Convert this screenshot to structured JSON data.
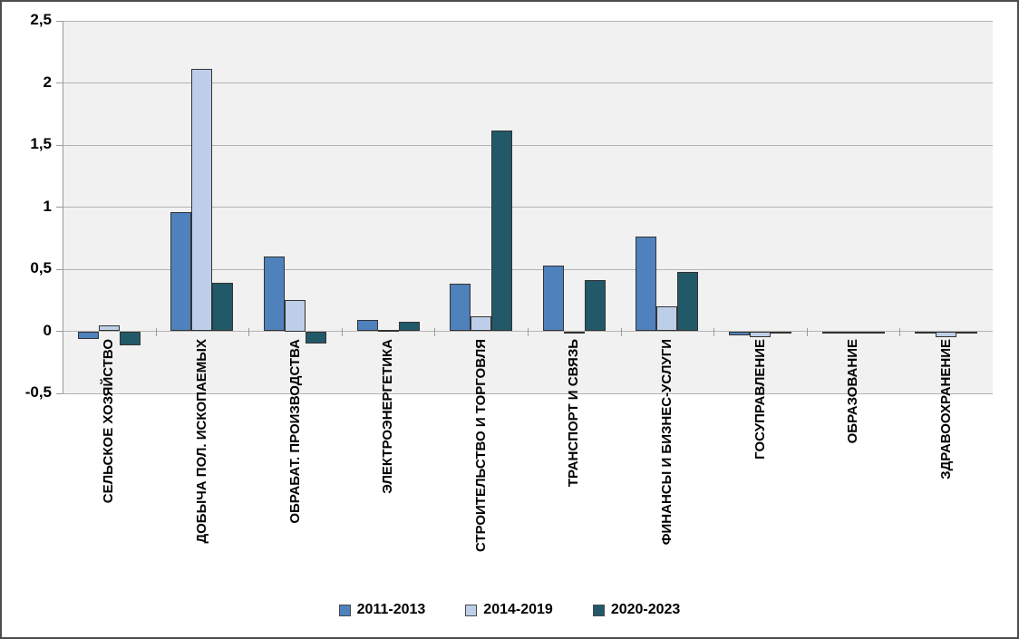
{
  "chart_data": {
    "type": "bar",
    "title": "",
    "xlabel": "",
    "ylabel": "",
    "categories": [
      "СЕЛЬСКОЕ ХОЗЯЙСТВО",
      "ДОБЫЧА ПОЛ. ИСКОПАЕМЫХ",
      "ОБРАБАТ. ПРОИЗВОДСТВА",
      "ЭЛЕКТРОЭНЕРГЕТИКА",
      "СТРОИТЕЛЬСТВО И ТОРГОВЛЯ",
      "ТРАНСПОРТ И СВЯЗЬ",
      "ФИНАНСЫ И БИЗНЕС-УСЛУГИ",
      "ГОСУПРАВЛЕНИЕ",
      "ОБРАЗОВАНИЕ",
      "ЗДРАВООХРАНЕНИЕ"
    ],
    "series": [
      {
        "name": "2011-2013",
        "color": "#4F81BD",
        "values": [
          -0.06,
          0.96,
          0.6,
          0.09,
          0.38,
          0.53,
          0.76,
          -0.03,
          -0.02,
          -0.02
        ]
      },
      {
        "name": "2014-2019",
        "color": "#BDCFE8",
        "values": [
          0.05,
          2.11,
          0.25,
          0.01,
          0.12,
          -0.02,
          0.2,
          -0.05,
          -0.01,
          -0.05
        ]
      },
      {
        "name": "2020-2023",
        "color": "#215968",
        "values": [
          -0.11,
          0.39,
          -0.1,
          0.08,
          1.62,
          0.41,
          0.48,
          -0.02,
          -0.01,
          -0.01
        ]
      }
    ],
    "ylim": [
      -0.5,
      2.5
    ],
    "yticks": [
      {
        "label": "2,5",
        "value": 2.5
      },
      {
        "label": "2",
        "value": 2.0
      },
      {
        "label": "1,5",
        "value": 1.5
      },
      {
        "label": "1",
        "value": 1.0
      },
      {
        "label": "0,5",
        "value": 0.5
      },
      {
        "label": "0",
        "value": 0.0
      },
      {
        "label": "-0,5",
        "value": -0.5
      }
    ],
    "grid": true,
    "legend_position": "bottom"
  },
  "style_colors": {
    "plot_background": "#f1f1f1",
    "gridline": "#b3b3b3",
    "bar_border": "#333333",
    "frame_border": "#4d4d4d"
  }
}
